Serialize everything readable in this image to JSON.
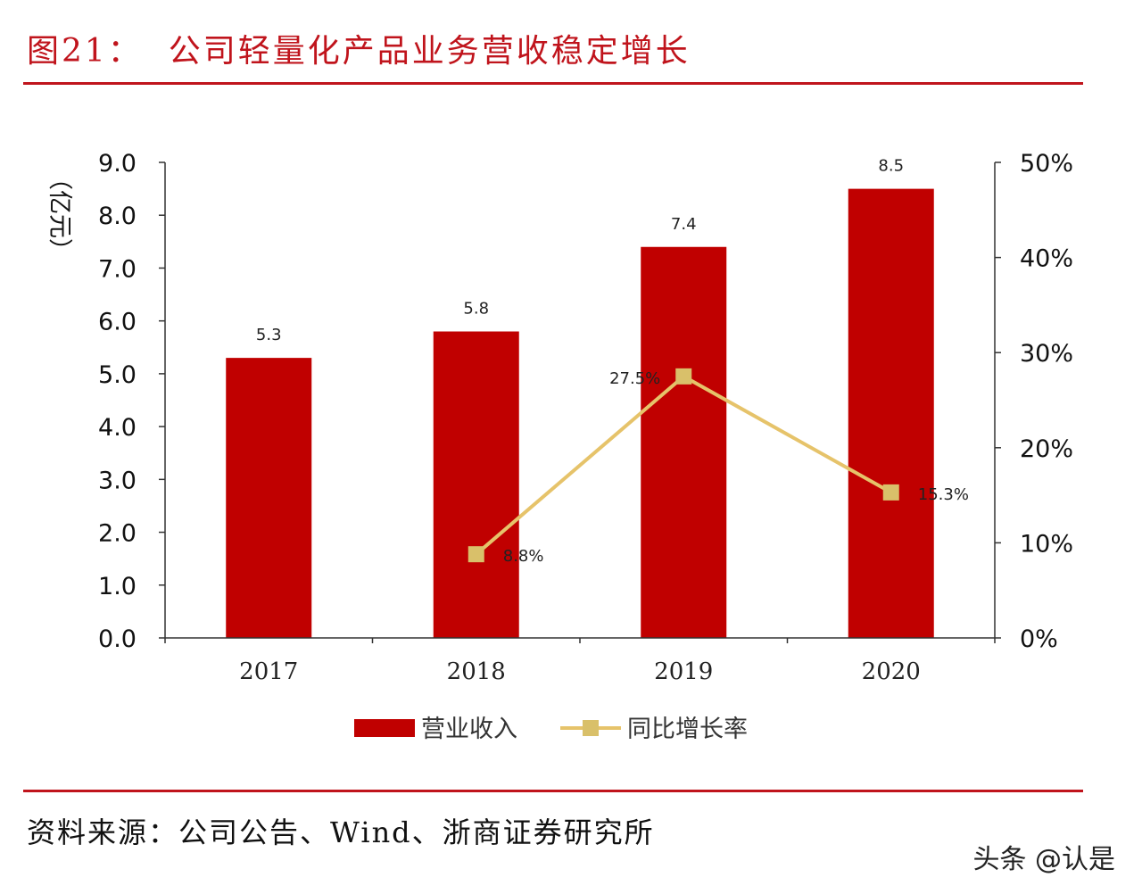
{
  "title": "图21：  公司轻量化产品业务营收稳定增长",
  "source": "资料来源：公司公告、Wind、浙商证券研究所",
  "watermark": "头条 @认是",
  "colors": {
    "bar": "#c00000",
    "line": "#e6c36a",
    "marker": "#d9c06a",
    "accent": "#c0141c"
  },
  "chart_data": {
    "type": "bar+line",
    "categories": [
      "2017",
      "2018",
      "2019",
      "2020"
    ],
    "ylabel": "（亿元）",
    "ylim": [
      0,
      9
    ],
    "y2lim": [
      0,
      50
    ],
    "yticks": [
      "0.0",
      "1.0",
      "2.0",
      "3.0",
      "4.0",
      "5.0",
      "6.0",
      "7.0",
      "8.0",
      "9.0"
    ],
    "y2ticks": [
      "0%",
      "10%",
      "20%",
      "30%",
      "40%",
      "50%"
    ],
    "grid": false,
    "legend_position": "bottom",
    "series": [
      {
        "name": "营业收入",
        "type": "bar",
        "axis": "left",
        "values": [
          5.3,
          5.8,
          7.4,
          8.5
        ],
        "labels": [
          "5.3",
          "5.8",
          "7.4",
          "8.5"
        ]
      },
      {
        "name": "同比增长率",
        "type": "line",
        "axis": "right",
        "values": [
          null,
          8.8,
          27.5,
          15.3
        ],
        "labels": [
          "",
          "8.8%",
          "27.5%",
          "15.3%"
        ]
      }
    ]
  }
}
